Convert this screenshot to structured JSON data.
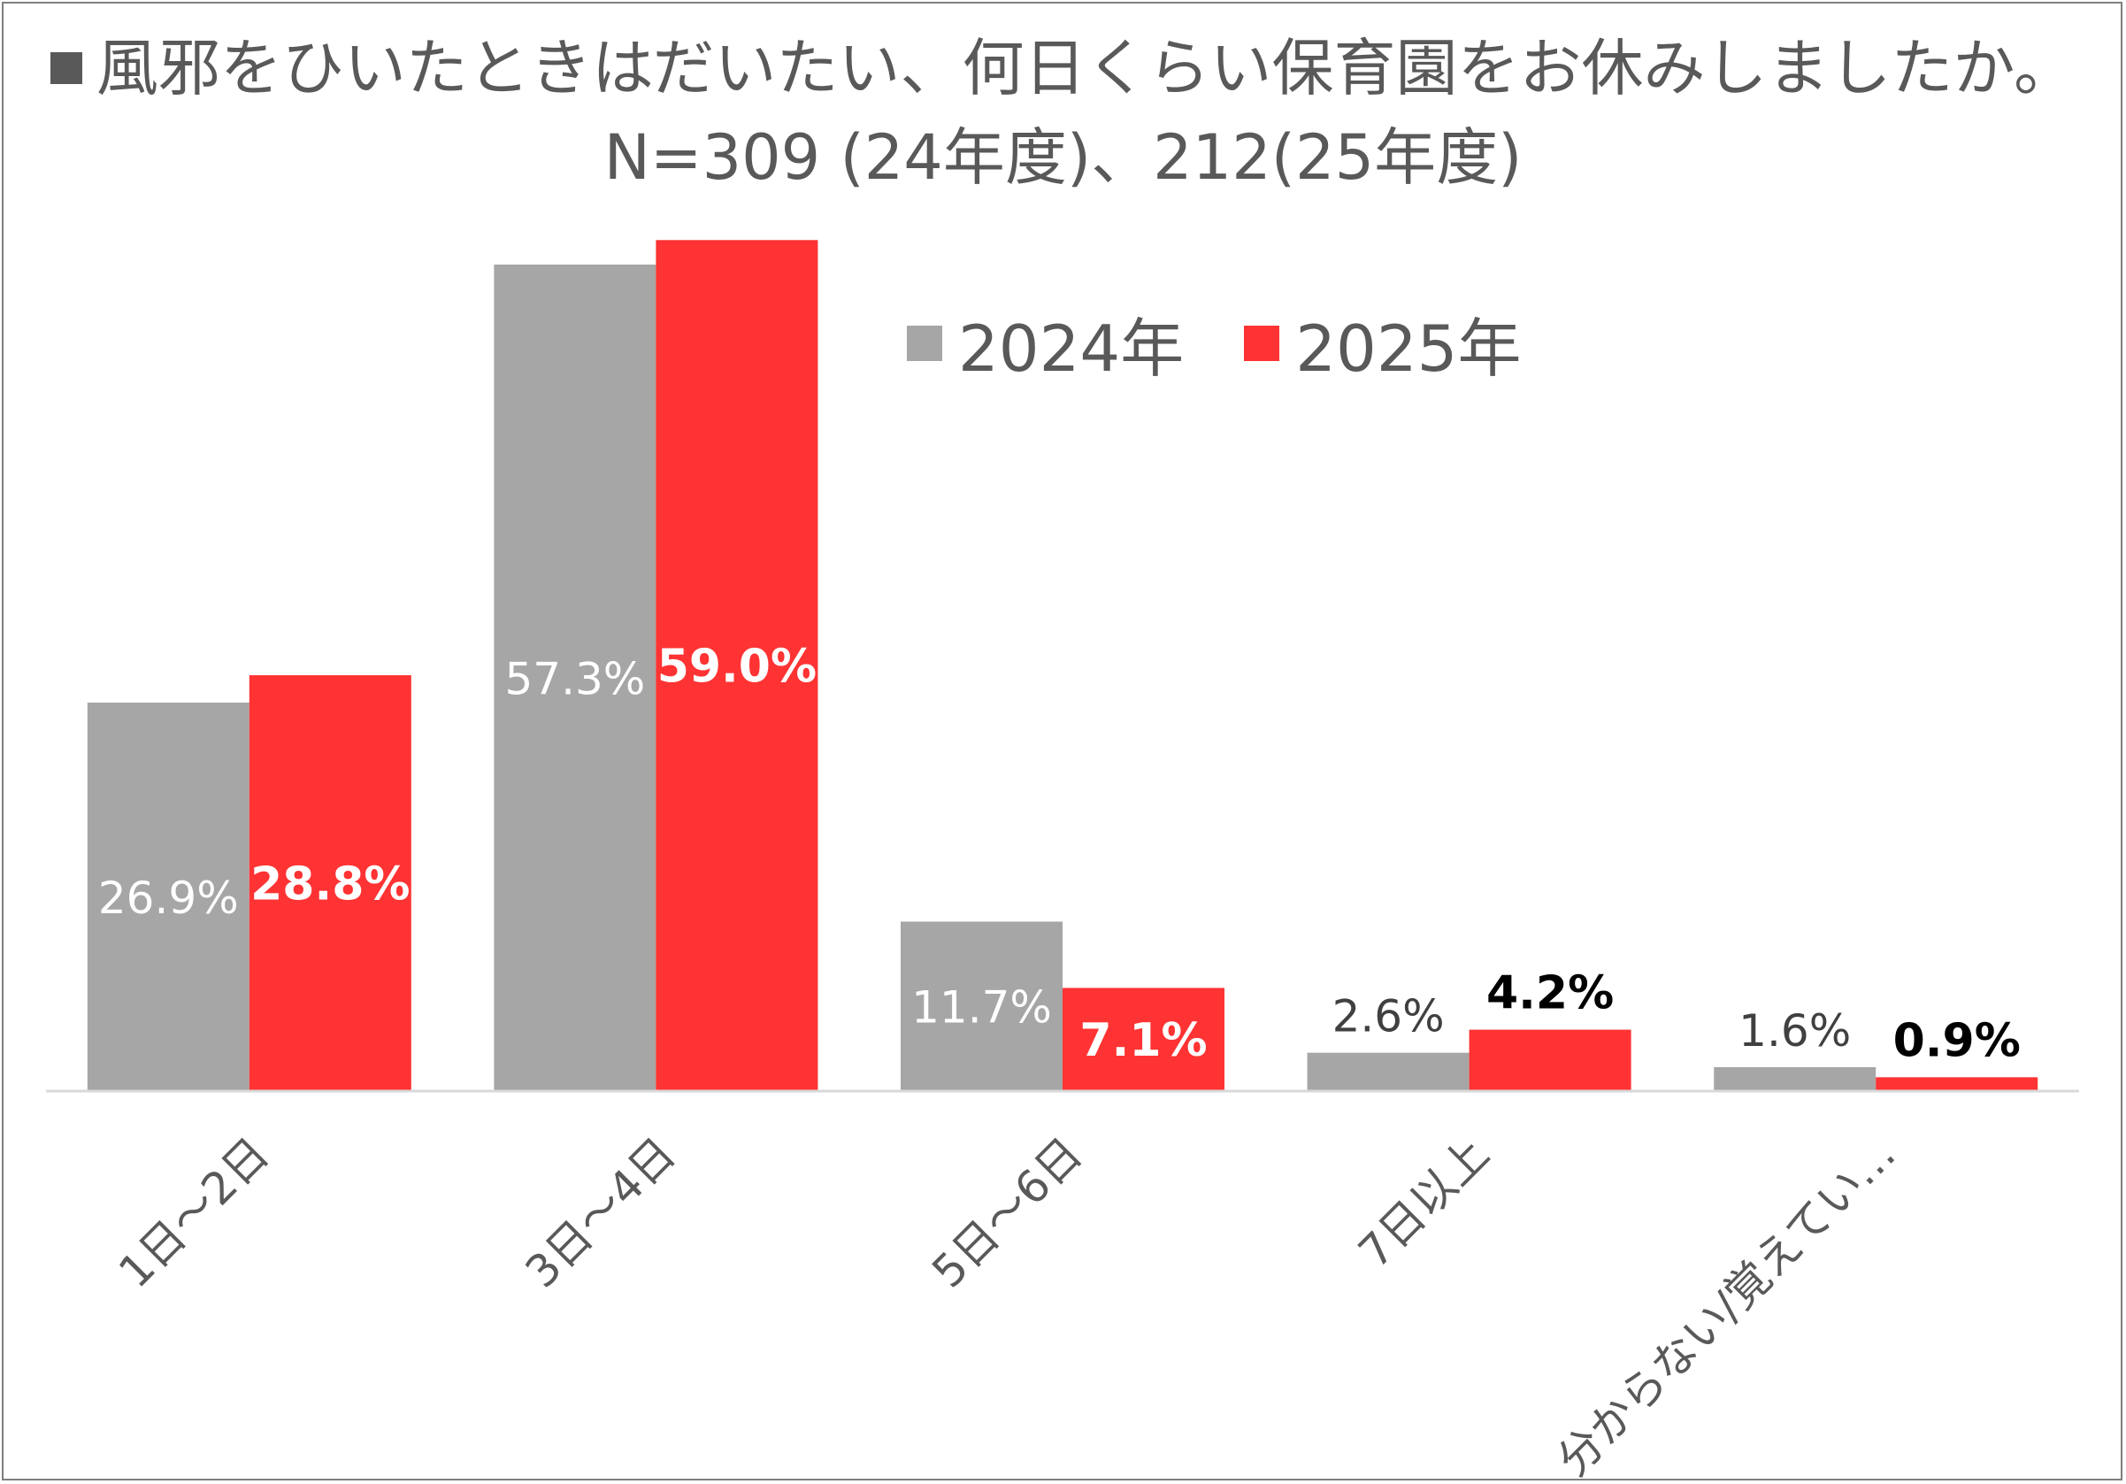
{
  "chart_data": {
    "type": "bar",
    "title_line1": "風邪をひいたときはだいたい、何日くらい保育園をお休みしましたか。",
    "title_line2": "N=309 (24年度)、212(25年度)",
    "categories": [
      "1日～2日",
      "3日～4日",
      "5日～6日",
      "7日以上",
      "分からない/覚えてい…"
    ],
    "series": [
      {
        "name": "2024年",
        "color": "#a6a6a6",
        "values": [
          26.9,
          57.3,
          11.7,
          2.6,
          1.6
        ],
        "labels": [
          "26.9%",
          "57.3%",
          "11.7%",
          "2.6%",
          "1.6%"
        ]
      },
      {
        "name": "2025年",
        "color": "#ff3333",
        "values": [
          28.8,
          59.0,
          7.1,
          4.2,
          0.9
        ],
        "labels": [
          "28.8%",
          "59.0%",
          "7.1%",
          "4.2%",
          "0.9%"
        ]
      }
    ],
    "ylim": [
      0,
      60
    ],
    "legend_position": "top-right",
    "grid": false
  }
}
